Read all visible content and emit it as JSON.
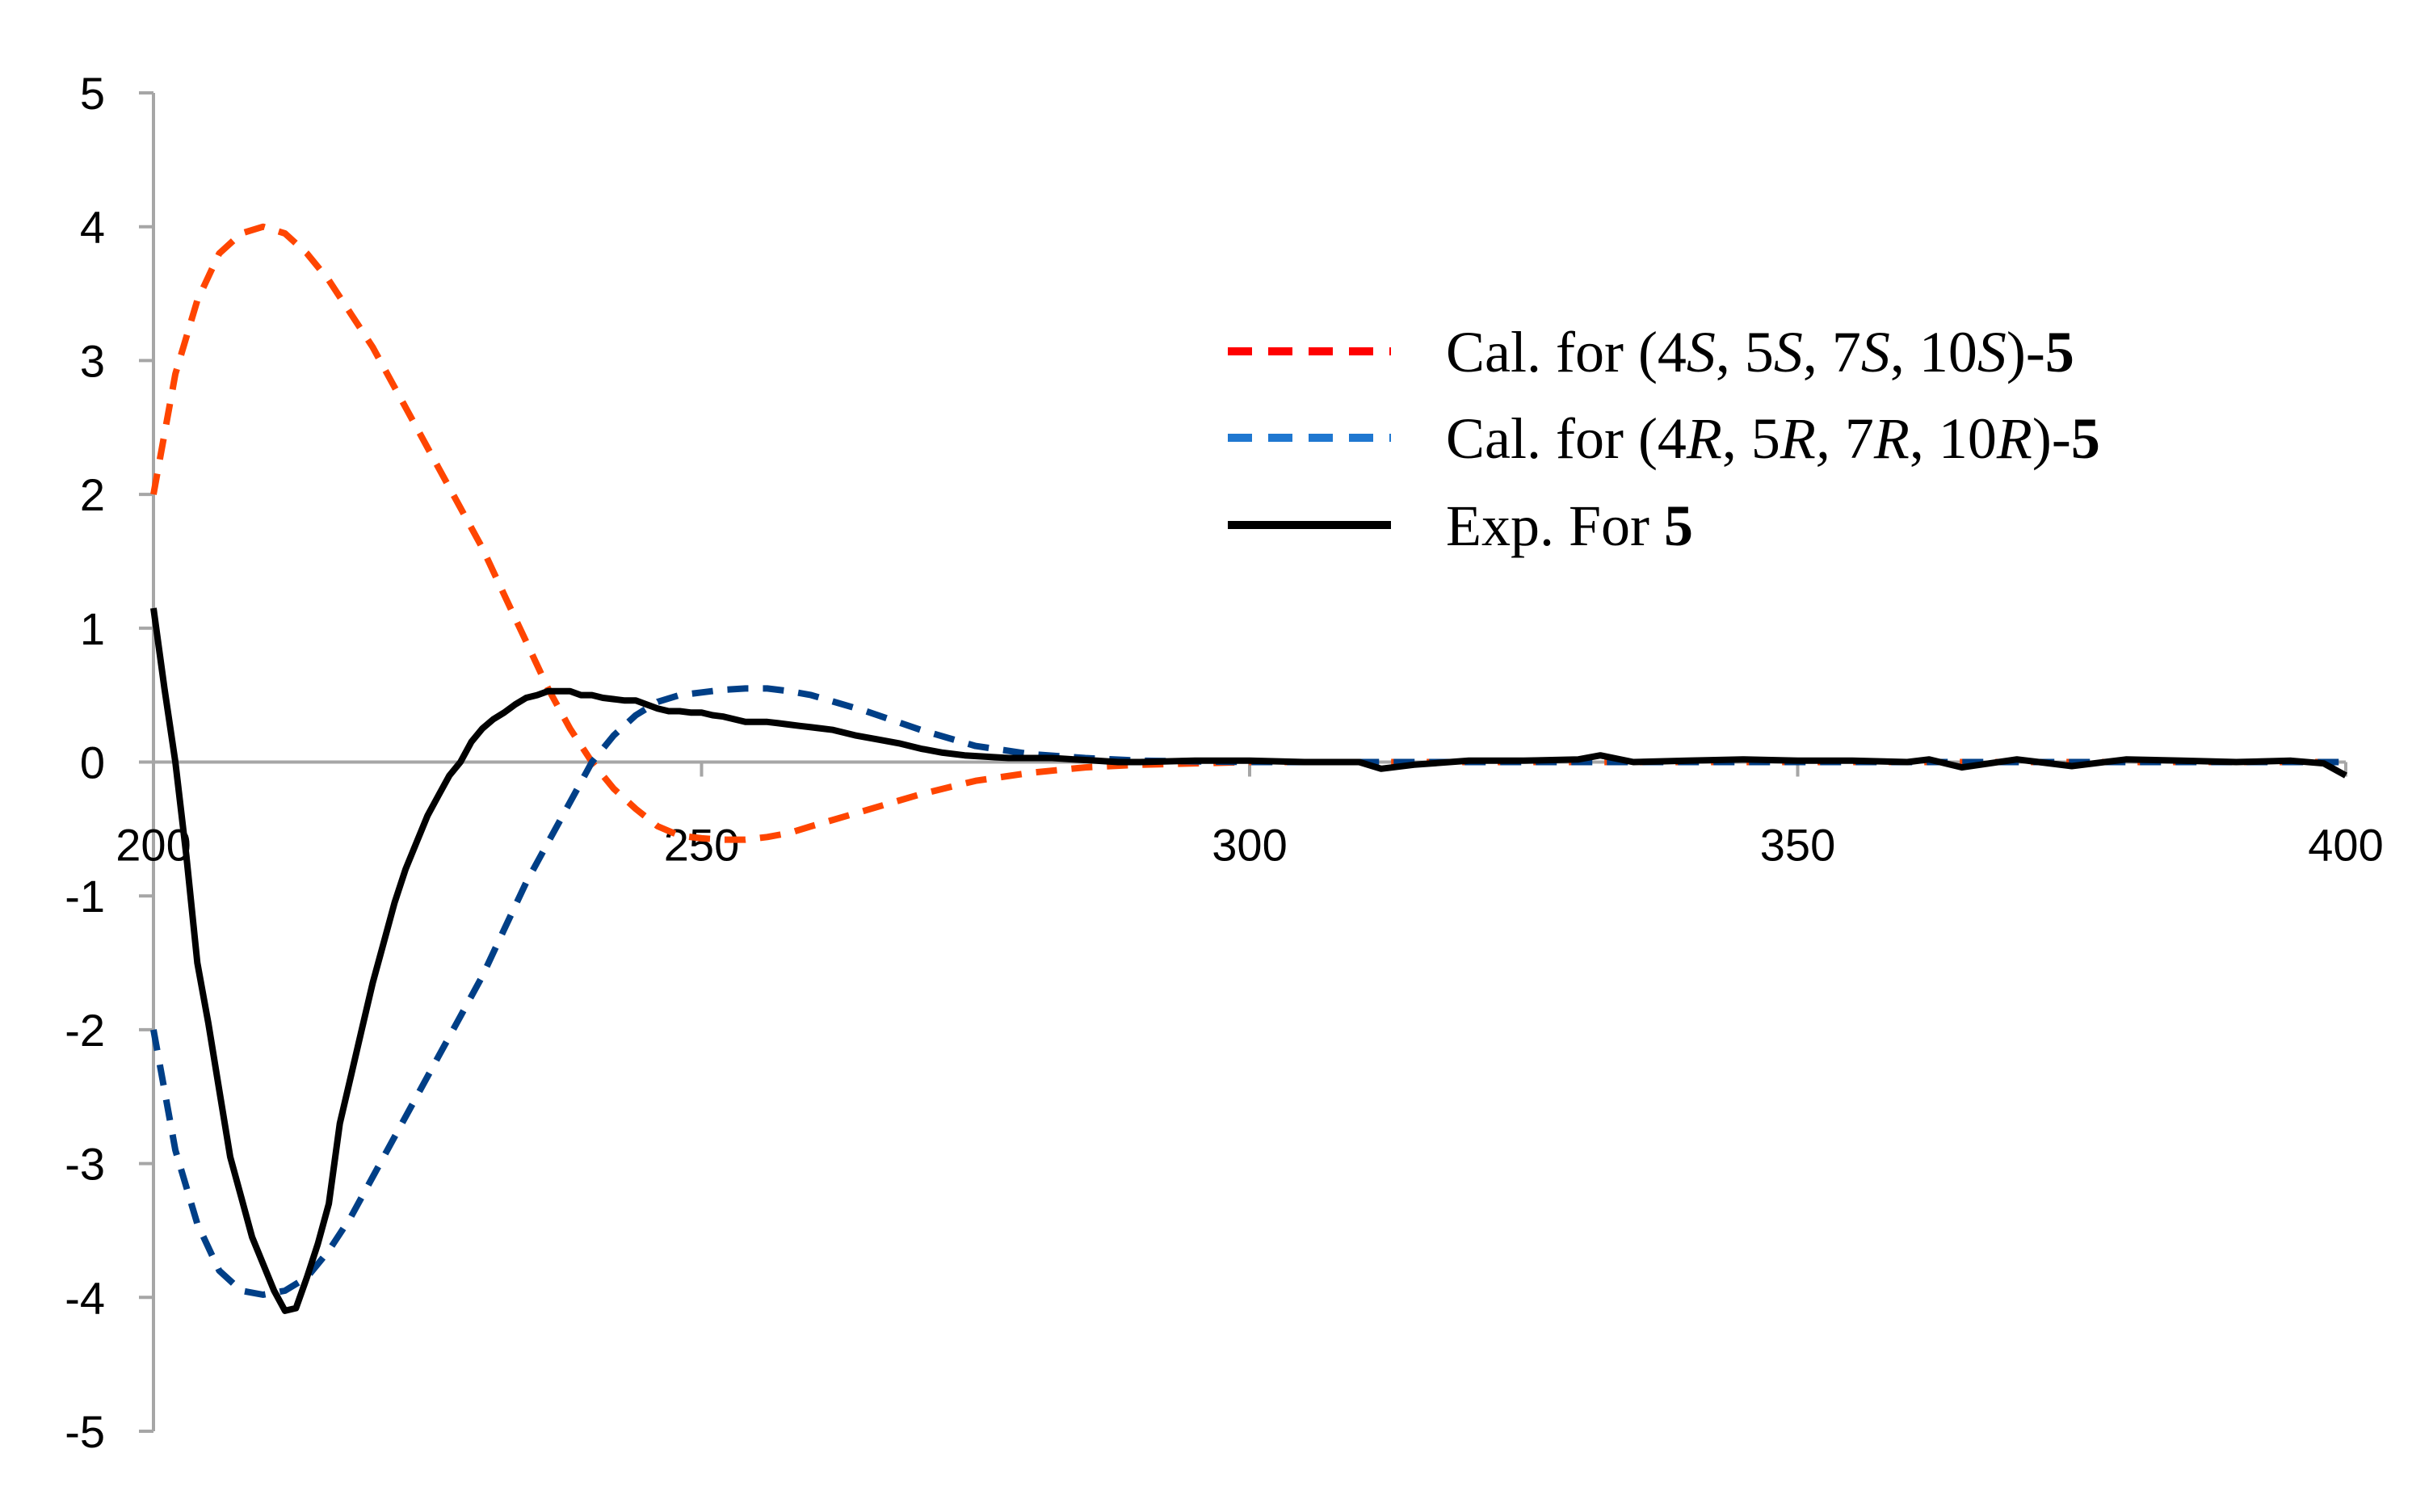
{
  "chart_data": {
    "type": "line",
    "title": "",
    "xlabel": "",
    "ylabel": "",
    "xlim": [
      200,
      400
    ],
    "ylim": [
      -5,
      5
    ],
    "x_ticks": [
      "200",
      "250",
      "300",
      "350",
      "400"
    ],
    "y_ticks": [
      "5",
      "4",
      "3",
      "2",
      "1",
      "0",
      "-1",
      "-2",
      "-3",
      "-4",
      "-5"
    ],
    "grid": false,
    "legend_position": "top-right",
    "legend": [
      {
        "key": "cal_s",
        "parts": [
          {
            "t": "Cal. for (4",
            "s": "n"
          },
          {
            "t": "S",
            "s": "i"
          },
          {
            "t": ", 5",
            "s": "n"
          },
          {
            "t": "S",
            "s": "i"
          },
          {
            "t": ", 7",
            "s": "n"
          },
          {
            "t": "S",
            "s": "i"
          },
          {
            "t": ", 10",
            "s": "n"
          },
          {
            "t": "S",
            "s": "i"
          },
          {
            "t": ")-",
            "s": "n"
          },
          {
            "t": "5",
            "s": "b"
          }
        ]
      },
      {
        "key": "cal_r",
        "parts": [
          {
            "t": "Cal. for (4",
            "s": "n"
          },
          {
            "t": "R",
            "s": "i"
          },
          {
            "t": ", 5",
            "s": "n"
          },
          {
            "t": "R,",
            "s": "i"
          },
          {
            "t": " 7",
            "s": "n"
          },
          {
            "t": "R",
            "s": "i"
          },
          {
            "t": ", 10",
            "s": "n"
          },
          {
            "t": "R",
            "s": "i"
          },
          {
            "t": ")-",
            "s": "n"
          },
          {
            "t": "5",
            "s": "b"
          }
        ]
      },
      {
        "key": "exp",
        "parts": [
          {
            "t": "Exp. For ",
            "s": "n"
          },
          {
            "t": "5",
            "s": "b"
          }
        ]
      }
    ],
    "series": [
      {
        "key": "cal_s",
        "color": "#FF4500",
        "legend_color": "#FF0000",
        "style": "dashed",
        "x": [
          200,
          202,
          204,
          206,
          208,
          210,
          212,
          214,
          216,
          218,
          220,
          222,
          224,
          226,
          228,
          230,
          232,
          234,
          236,
          238,
          240,
          242,
          244,
          246,
          248,
          250,
          252,
          254,
          256,
          258,
          260,
          265,
          270,
          275,
          280,
          285,
          290,
          300,
          320,
          340,
          360,
          380,
          400
        ],
        "y": [
          2.0,
          2.9,
          3.45,
          3.8,
          3.95,
          4.0,
          3.95,
          3.8,
          3.6,
          3.35,
          3.1,
          2.8,
          2.5,
          2.2,
          1.9,
          1.6,
          1.25,
          0.9,
          0.55,
          0.25,
          0.0,
          -0.2,
          -0.35,
          -0.48,
          -0.55,
          -0.57,
          -0.58,
          -0.58,
          -0.56,
          -0.53,
          -0.48,
          -0.36,
          -0.24,
          -0.14,
          -0.08,
          -0.04,
          -0.02,
          0.0,
          0.0,
          0.0,
          0.0,
          0.0,
          0.0
        ]
      },
      {
        "key": "cal_r",
        "color": "#003F87",
        "legend_color": "#1F77D0",
        "style": "dashed",
        "x": [
          200,
          202,
          204,
          206,
          208,
          210,
          212,
          214,
          216,
          218,
          220,
          222,
          224,
          226,
          228,
          230,
          232,
          234,
          236,
          238,
          240,
          242,
          244,
          246,
          248,
          250,
          252,
          254,
          256,
          258,
          260,
          265,
          270,
          275,
          280,
          285,
          290,
          300,
          320,
          340,
          360,
          380,
          400
        ],
        "y": [
          -2.0,
          -2.9,
          -3.45,
          -3.8,
          -3.95,
          -3.98,
          -3.95,
          -3.85,
          -3.65,
          -3.4,
          -3.1,
          -2.8,
          -2.5,
          -2.2,
          -1.9,
          -1.6,
          -1.25,
          -0.9,
          -0.6,
          -0.3,
          0.0,
          0.2,
          0.35,
          0.45,
          0.5,
          0.52,
          0.54,
          0.55,
          0.55,
          0.53,
          0.5,
          0.38,
          0.24,
          0.12,
          0.06,
          0.03,
          0.01,
          0.0,
          0.0,
          0.0,
          0.0,
          0.0,
          0.0
        ]
      },
      {
        "key": "exp",
        "color": "#000000",
        "legend_color": "#000000",
        "style": "solid",
        "x": [
          200,
          201,
          202,
          203,
          204,
          205,
          206,
          207,
          208,
          209,
          210,
          211,
          212,
          213,
          214,
          215,
          216,
          217,
          218,
          219,
          220,
          221,
          222,
          223,
          224,
          225,
          226,
          227,
          228,
          229,
          230,
          231,
          232,
          233,
          234,
          235,
          236,
          237,
          238,
          239,
          240,
          241,
          242,
          243,
          244,
          245,
          246,
          247,
          248,
          249,
          250,
          251,
          252,
          253,
          254,
          255,
          256,
          257,
          258,
          259,
          260,
          262,
          264,
          266,
          268,
          270,
          272,
          274,
          276,
          278,
          280,
          282,
          284,
          286,
          288,
          290,
          295,
          300,
          305,
          310,
          312,
          315,
          320,
          325,
          330,
          332,
          335,
          340,
          345,
          350,
          355,
          360,
          362,
          365,
          370,
          372,
          375,
          380,
          385,
          390,
          395,
          398,
          400
        ],
        "y": [
          1.15,
          0.55,
          0.0,
          -0.7,
          -1.5,
          -1.95,
          -2.45,
          -2.95,
          -3.25,
          -3.55,
          -3.75,
          -3.95,
          -4.1,
          -4.08,
          -3.85,
          -3.6,
          -3.3,
          -2.7,
          -2.35,
          -2.0,
          -1.65,
          -1.35,
          -1.05,
          -0.8,
          -0.6,
          -0.4,
          -0.25,
          -0.1,
          0.0,
          0.15,
          0.25,
          0.32,
          0.37,
          0.43,
          0.48,
          0.5,
          0.53,
          0.53,
          0.53,
          0.5,
          0.5,
          0.48,
          0.47,
          0.46,
          0.46,
          0.43,
          0.4,
          0.38,
          0.38,
          0.37,
          0.37,
          0.35,
          0.34,
          0.32,
          0.3,
          0.3,
          0.3,
          0.29,
          0.28,
          0.27,
          0.26,
          0.24,
          0.2,
          0.17,
          0.14,
          0.1,
          0.07,
          0.05,
          0.04,
          0.03,
          0.03,
          0.03,
          0.02,
          0.01,
          0.0,
          0.0,
          0.01,
          0.01,
          0.0,
          0.0,
          -0.05,
          -0.02,
          0.01,
          0.01,
          0.02,
          0.05,
          0.0,
          0.01,
          0.02,
          0.01,
          0.01,
          0.0,
          0.02,
          -0.04,
          0.02,
          0.0,
          -0.03,
          0.02,
          0.01,
          0.0,
          0.01,
          -0.01,
          -0.1
        ]
      }
    ]
  }
}
